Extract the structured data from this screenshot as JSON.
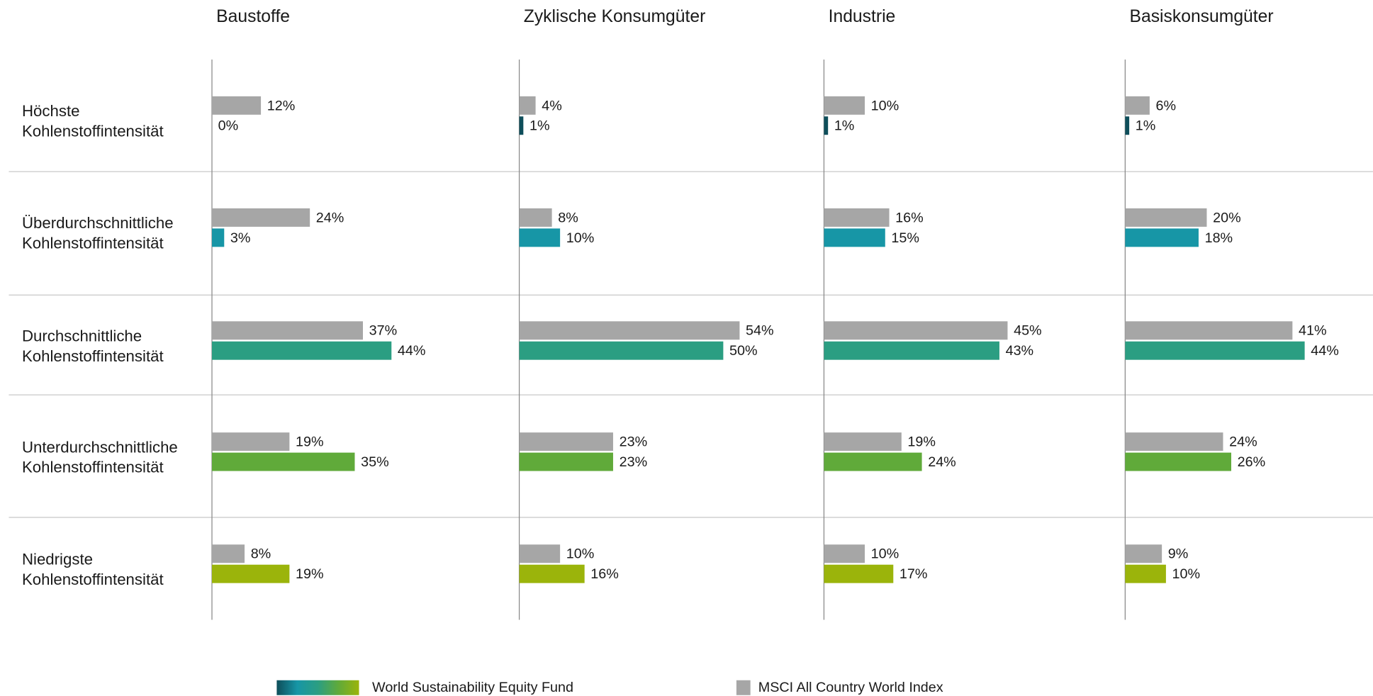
{
  "chart_data": {
    "type": "bar",
    "orientation": "horizontal",
    "panels": [
      "Baustoffe",
      "Zyklische Konsumgüter",
      "Industrie",
      "Basiskonsumgüter"
    ],
    "categories": [
      [
        "Höchste",
        "Kohlenstoffintensität"
      ],
      [
        "Überdurchschnittliche",
        "Kohlenstoffintensität"
      ],
      [
        "Durchschnittliche",
        "Kohlenstoffintensität"
      ],
      [
        "Unterdurchschnittliche",
        "Kohlenstoffintensität"
      ],
      [
        "Niedrigste",
        "Kohlenstoffintensität"
      ]
    ],
    "series": [
      {
        "name": "MSCI All Country World Index",
        "color": "#a6a6a6",
        "values": [
          [
            12,
            24,
            37,
            19,
            8
          ],
          [
            4,
            8,
            54,
            23,
            10
          ],
          [
            10,
            16,
            45,
            19,
            10
          ],
          [
            6,
            20,
            41,
            24,
            9
          ]
        ],
        "value_labels": [
          [
            "12%",
            "24%",
            "37%",
            "19%",
            "8%"
          ],
          [
            "4%",
            "8%",
            "54%",
            "23%",
            "10%"
          ],
          [
            "10%",
            "16%",
            "45%",
            "19%",
            "10%"
          ],
          [
            "6%",
            "20%",
            "41%",
            "24%",
            "9%"
          ]
        ]
      },
      {
        "name": "World Sustainability Equity Fund",
        "colors": [
          "#0e4e5a",
          "#1796a6",
          "#2b9e82",
          "#60aa3a",
          "#9bb40b"
        ],
        "values": [
          [
            0,
            3,
            44,
            35,
            19
          ],
          [
            1,
            10,
            50,
            23,
            16
          ],
          [
            1,
            15,
            43,
            24,
            17
          ],
          [
            1,
            18,
            44,
            26,
            10
          ]
        ],
        "value_labels": [
          [
            "0%",
            "3%",
            "44%",
            "35%",
            "19%"
          ],
          [
            "1%",
            "10%",
            "50%",
            "23%",
            "16%"
          ],
          [
            "1%",
            "15%",
            "43%",
            "24%",
            "17%"
          ],
          [
            "1%",
            "18%",
            "44%",
            "26%",
            "10%"
          ]
        ]
      }
    ]
  }
}
